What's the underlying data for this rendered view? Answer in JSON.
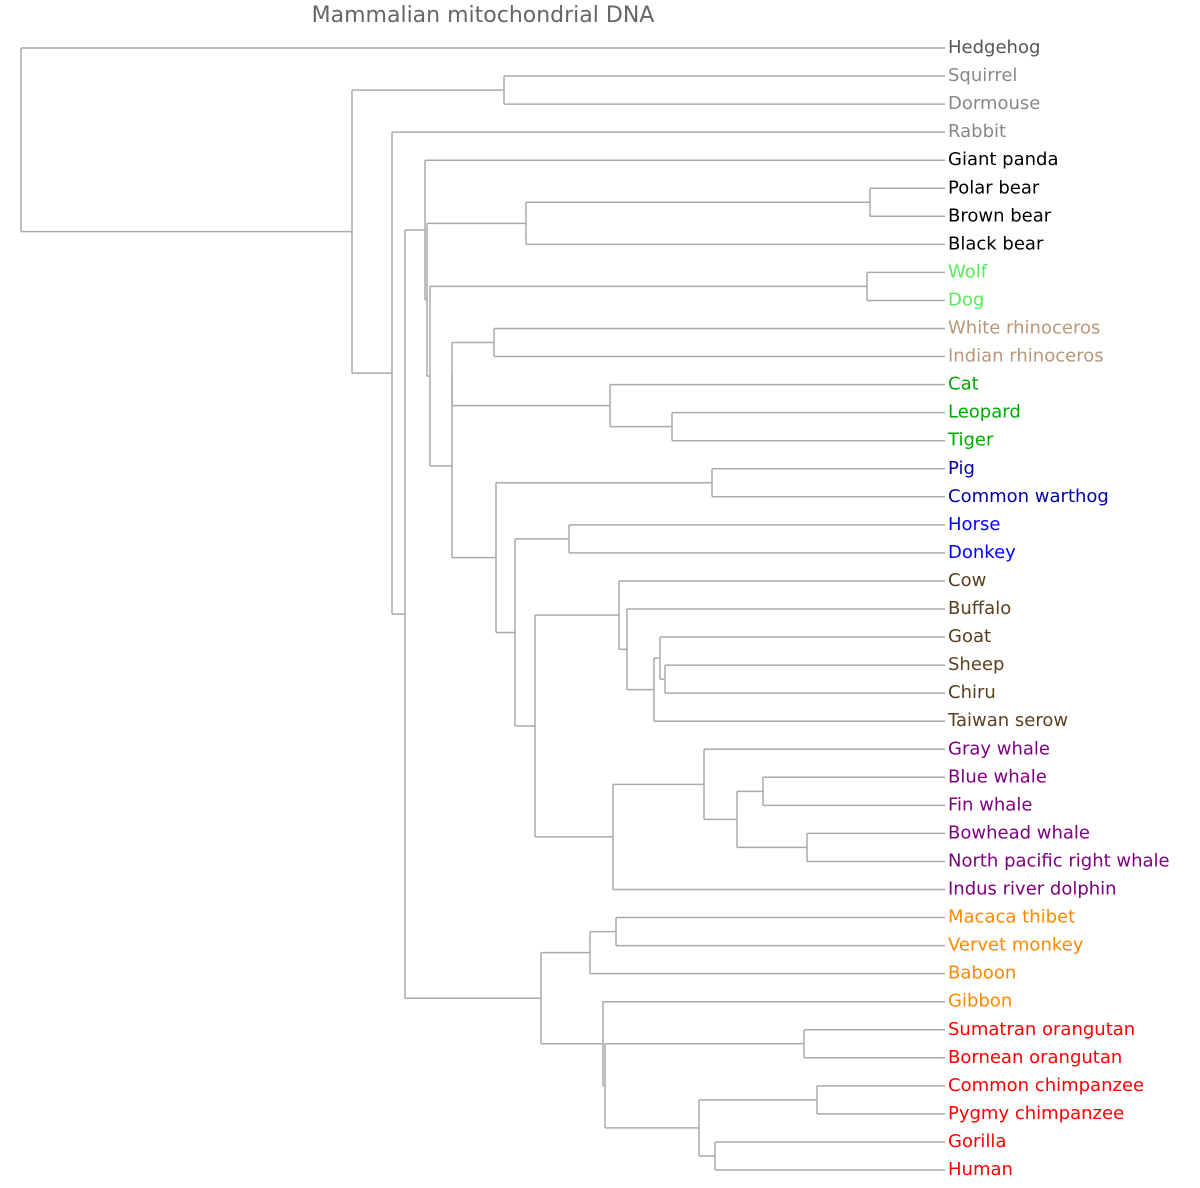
{
  "title": "Mammalian mitochondrial DNA",
  "branch_color": "#aaaaaa",
  "leaves": [
    {
      "label": "Hedgehog",
      "color": "#555555"
    },
    {
      "label": "Squirrel",
      "color": "#888888"
    },
    {
      "label": "Dormouse",
      "color": "#888888"
    },
    {
      "label": "Rabbit",
      "color": "#888888"
    },
    {
      "label": "Giant panda",
      "color": "#000000"
    },
    {
      "label": "Polar bear",
      "color": "#000000"
    },
    {
      "label": "Brown bear",
      "color": "#000000"
    },
    {
      "label": "Black bear",
      "color": "#000000"
    },
    {
      "label": "Wolf",
      "color": "#55ee55"
    },
    {
      "label": "Dog",
      "color": "#55ee55"
    },
    {
      "label": "White rhinoceros",
      "color": "#b8977a"
    },
    {
      "label": "Indian rhinoceros",
      "color": "#b8977a"
    },
    {
      "label": "Cat",
      "color": "#00aa00"
    },
    {
      "label": "Leopard",
      "color": "#00aa00"
    },
    {
      "label": "Tiger",
      "color": "#00aa00"
    },
    {
      "label": "Pig",
      "color": "#0000aa"
    },
    {
      "label": "Common warthog",
      "color": "#0000aa"
    },
    {
      "label": "Horse",
      "color": "#0000ff"
    },
    {
      "label": "Donkey",
      "color": "#0000ff"
    },
    {
      "label": "Cow",
      "color": "#5a4020"
    },
    {
      "label": "Buffalo",
      "color": "#5a4020"
    },
    {
      "label": "Goat",
      "color": "#5a4020"
    },
    {
      "label": "Sheep",
      "color": "#5a4020"
    },
    {
      "label": "Chiru",
      "color": "#5a4020"
    },
    {
      "label": "Taiwan serow",
      "color": "#5a4020"
    },
    {
      "label": "Gray whale",
      "color": "#800080"
    },
    {
      "label": "Blue whale",
      "color": "#800080"
    },
    {
      "label": "Fin whale",
      "color": "#800080"
    },
    {
      "label": "Bowhead whale",
      "color": "#800080"
    },
    {
      "label": "North pacific right whale",
      "color": "#800080"
    },
    {
      "label": "Indus river dolphin",
      "color": "#800080"
    },
    {
      "label": "Macaca thibet",
      "color": "#ff8800"
    },
    {
      "label": "Vervet monkey",
      "color": "#ff8800"
    },
    {
      "label": "Baboon",
      "color": "#ff8800"
    },
    {
      "label": "Gibbon",
      "color": "#ff8800"
    },
    {
      "label": "Sumatran orangutan",
      "color": "#ff0000"
    },
    {
      "label": "Bornean orangutan",
      "color": "#ff0000"
    },
    {
      "label": "Common chimpanzee",
      "color": "#ff0000"
    },
    {
      "label": "Pygmy chimpanzee",
      "color": "#ff0000"
    },
    {
      "label": "Gorilla",
      "color": "#ff0000"
    },
    {
      "label": "Human",
      "color": "#ff0000"
    }
  ]
}
